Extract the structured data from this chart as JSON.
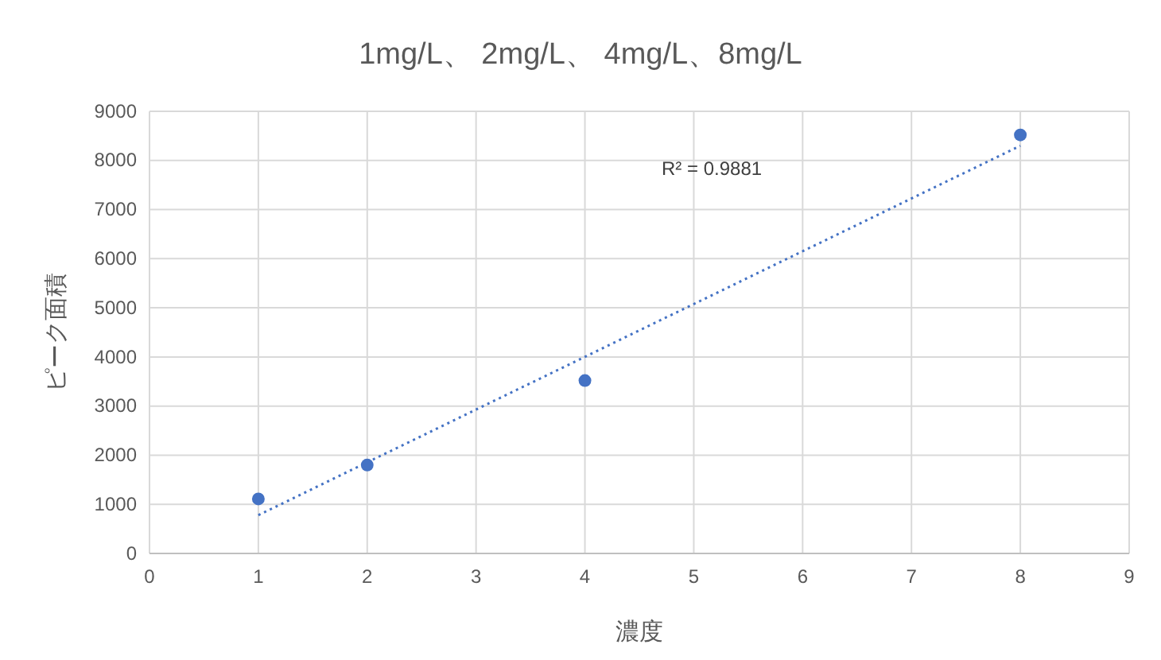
{
  "chart_data": {
    "type": "scatter",
    "title": "1mg/L、 2mg/L、 4mg/L、8mg/L",
    "xlabel": "濃度",
    "ylabel": "ピーク面積",
    "x": [
      1,
      2,
      4,
      8
    ],
    "series": [
      {
        "color": "#4472c4",
        "values": [
          1110,
          1800,
          3520,
          8520
        ],
        "marker": "circle"
      },
      {
        "type": "line",
        "color": "#4472c4",
        "x": [
          1,
          8
        ],
        "values": [
          780,
          8300
        ],
        "line_style": "dotted",
        "marker": "none"
      }
    ],
    "annotations": [
      "R² = 0.9881"
    ],
    "xlim": [
      0,
      9
    ],
    "xticks": [
      0,
      1,
      2,
      3,
      4,
      5,
      6,
      7,
      8,
      9
    ],
    "ylim": [
      0,
      9000
    ],
    "yticks": [
      0,
      1000,
      2000,
      3000,
      4000,
      5000,
      6000,
      7000,
      8000,
      9000
    ],
    "grid": true
  }
}
